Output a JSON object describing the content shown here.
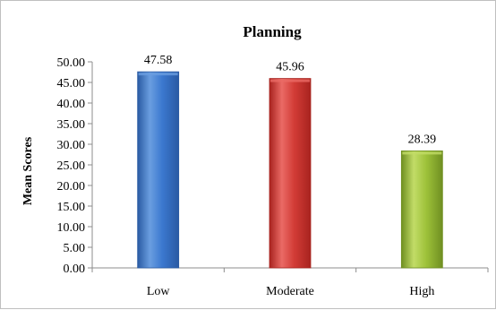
{
  "chart_data": {
    "type": "bar",
    "title": "Planning",
    "xlabel": "",
    "ylabel": "Mean Scores",
    "categories": [
      "Low",
      "Moderate",
      "High"
    ],
    "values": [
      47.58,
      45.96,
      28.39
    ],
    "data_labels": [
      "47.58",
      "45.96",
      "28.39"
    ],
    "ylim": [
      0,
      50
    ],
    "yticks": [
      "0.00",
      "5.00",
      "10.00",
      "15.00",
      "20.00",
      "25.00",
      "30.00",
      "35.00",
      "40.00",
      "45.00",
      "50.00"
    ],
    "grid": false,
    "legend": "none",
    "bar_colors": [
      {
        "light": "#6a9ee0",
        "mid": "#3b78cf",
        "dark": "#2a5aa3"
      },
      {
        "light": "#ea6a65",
        "mid": "#d23c36",
        "dark": "#a8231f"
      },
      {
        "light": "#c2dc67",
        "mid": "#9ec23a",
        "dark": "#6f8f21"
      }
    ]
  }
}
